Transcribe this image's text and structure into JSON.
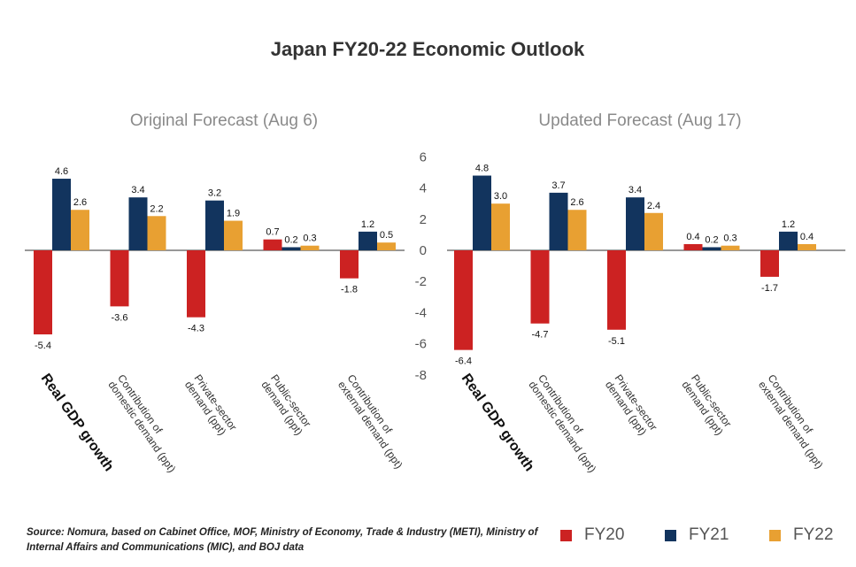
{
  "title": "Japan FY20-22 Economic Outlook",
  "source": "Source: Nomura, based on Cabinet Office, MOF, Ministry of Economy, Trade & Industry (METI), Ministry of Internal Affairs and Communications (MIC), and BOJ data",
  "colors": {
    "FY20": "#cc2222",
    "FY21": "#12345e",
    "FY22": "#e8a032",
    "axis": "#777777"
  },
  "legend": [
    {
      "name": "FY20",
      "color": "#cc2222"
    },
    {
      "name": "FY21",
      "color": "#12345e"
    },
    {
      "name": "FY22",
      "color": "#e8a032"
    }
  ],
  "chart_data": [
    {
      "type": "bar",
      "title": "Original Forecast (Aug 6)",
      "categories": [
        [
          "Real GDP growth"
        ],
        [
          "Contribution of",
          "domestic demand (ppt)"
        ],
        [
          "Private-sector",
          "demand (ppt)"
        ],
        [
          "Public-sector",
          "demand (ppt)"
        ],
        [
          "Contribution of",
          "external demand (ppt)"
        ]
      ],
      "series": [
        {
          "name": "FY20",
          "values": [
            -5.4,
            -3.6,
            -4.3,
            0.7,
            -1.8
          ]
        },
        {
          "name": "FY21",
          "values": [
            4.6,
            3.4,
            3.2,
            0.2,
            1.2
          ]
        },
        {
          "name": "FY22",
          "values": [
            2.6,
            2.2,
            1.9,
            0.3,
            0.5
          ]
        }
      ],
      "ylim": [
        -8,
        6
      ],
      "yticks": [
        6,
        4,
        2,
        0,
        -2,
        -4,
        -6,
        -8
      ]
    },
    {
      "type": "bar",
      "title": "Updated Forecast (Aug 17)",
      "categories": [
        [
          "Real GDP growth"
        ],
        [
          "Contribution of",
          "domestic demand (ppt)"
        ],
        [
          "Private-sector",
          "demand (ppt)"
        ],
        [
          "Public-sector",
          "demand (ppt)"
        ],
        [
          "Contribution of",
          "external demand (ppt)"
        ]
      ],
      "series": [
        {
          "name": "FY20",
          "values": [
            -6.4,
            -4.7,
            -5.1,
            0.4,
            -1.7
          ]
        },
        {
          "name": "FY21",
          "values": [
            4.8,
            3.7,
            3.4,
            0.2,
            1.2
          ]
        },
        {
          "name": "FY22",
          "values": [
            3.0,
            2.6,
            2.4,
            0.3,
            0.4
          ]
        }
      ],
      "ylim": [
        -8,
        6
      ],
      "yticks": [
        6,
        4,
        2,
        0,
        -2,
        -4,
        -6,
        -8
      ]
    }
  ]
}
